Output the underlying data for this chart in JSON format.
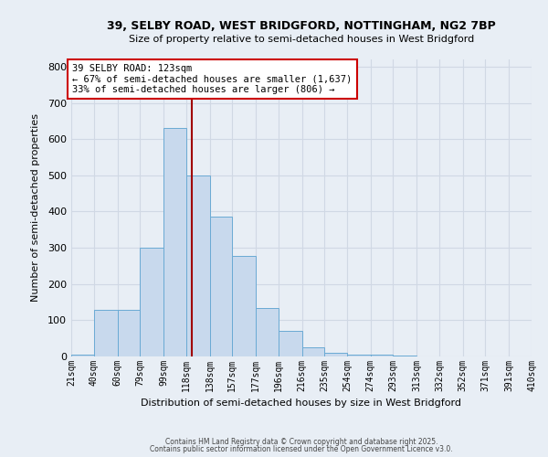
{
  "title1": "39, SELBY ROAD, WEST BRIDGFORD, NOTTINGHAM, NG2 7BP",
  "title2": "Size of property relative to semi-detached houses in West Bridgford",
  "xlabel": "Distribution of semi-detached houses by size in West Bridgford",
  "ylabel": "Number of semi-detached properties",
  "bar_color": "#c8d9ed",
  "bar_edge_color": "#6aaad4",
  "bin_labels": [
    "21sqm",
    "40sqm",
    "60sqm",
    "79sqm",
    "99sqm",
    "118sqm",
    "138sqm",
    "157sqm",
    "177sqm",
    "196sqm",
    "216sqm",
    "235sqm",
    "254sqm",
    "274sqm",
    "293sqm",
    "313sqm",
    "332sqm",
    "352sqm",
    "371sqm",
    "391sqm",
    "410sqm"
  ],
  "bar_values": [
    5,
    128,
    128,
    300,
    630,
    500,
    385,
    278,
    133,
    70,
    25,
    10,
    5,
    5,
    3,
    0,
    0,
    0,
    0,
    0
  ],
  "bin_edges": [
    21,
    40,
    60,
    79,
    99,
    118,
    138,
    157,
    177,
    196,
    216,
    235,
    254,
    274,
    293,
    313,
    332,
    352,
    371,
    391,
    410
  ],
  "property_size": 123,
  "vline_color": "#a00000",
  "annotation_line1": "39 SELBY ROAD: 123sqm",
  "annotation_line2": "← 67% of semi-detached houses are smaller (1,637)",
  "annotation_line3": "33% of semi-detached houses are larger (806) →",
  "annotation_box_color": "#ffffff",
  "annotation_box_edge": "#cc0000",
  "ylim": [
    0,
    820
  ],
  "yticks": [
    0,
    100,
    200,
    300,
    400,
    500,
    600,
    700,
    800
  ],
  "background_color": "#e8eef5",
  "grid_color": "#d0d8e4",
  "footer_text1": "Contains HM Land Registry data © Crown copyright and database right 2025.",
  "footer_text2": "Contains public sector information licensed under the Open Government Licence v3.0."
}
